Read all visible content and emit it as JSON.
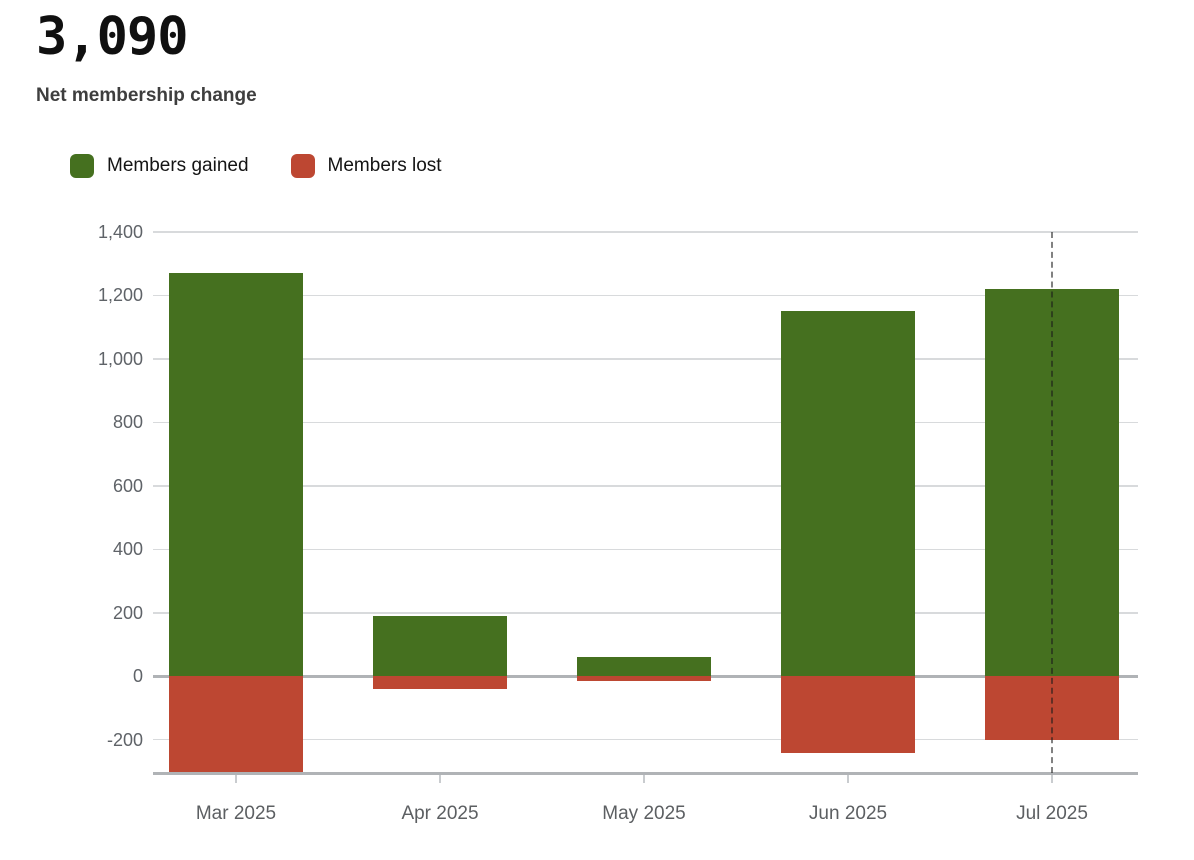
{
  "header": {
    "value": "3,090",
    "subtitle": "Net membership change"
  },
  "legend": {
    "items": [
      {
        "label": "Members gained",
        "color": "#45701f"
      },
      {
        "label": "Members lost",
        "color": "#bd4732"
      }
    ]
  },
  "chart_data": {
    "type": "bar",
    "title": "Net membership change",
    "big_number": "3,090",
    "categories": [
      "Mar 2025",
      "Apr 2025",
      "May 2025",
      "Jun 2025",
      "Jul 2025"
    ],
    "series": [
      {
        "name": "Members gained",
        "color": "#45701f",
        "values": [
          1270,
          190,
          60,
          1150,
          1220
        ]
      },
      {
        "name": "Members lost",
        "color": "#bd4732",
        "values": [
          -305,
          -40,
          -15,
          -240,
          -200
        ]
      }
    ],
    "ylim": [
      -305,
      1400
    ],
    "yticks": [
      {
        "value": -200,
        "label": "-200"
      },
      {
        "value": 0,
        "label": "0"
      },
      {
        "value": 200,
        "label": "200"
      },
      {
        "value": 400,
        "label": "400"
      },
      {
        "value": 600,
        "label": "600"
      },
      {
        "value": 800,
        "label": "800"
      },
      {
        "value": 1000,
        "label": "1,000"
      },
      {
        "value": 1200,
        "label": "1,200"
      },
      {
        "value": 1400,
        "label": "1,400"
      }
    ],
    "grid": true,
    "legend_position": "top",
    "annotations": [
      {
        "type": "vertical-dashed-line",
        "category": "Jul 2025"
      }
    ],
    "colors": {
      "grid": "#d8dadc",
      "axis": "#b0b3b6",
      "dashed_rule": "#808080"
    }
  }
}
